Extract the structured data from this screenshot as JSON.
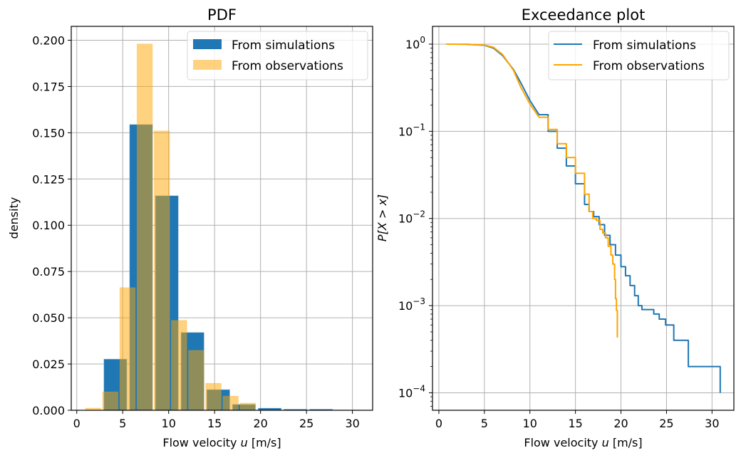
{
  "colors": {
    "simulations": "#1f77b4",
    "observations": "#ffa500",
    "grid": "#b0b0b0"
  },
  "chart_data": [
    {
      "type": "bar",
      "subtype": "histogram",
      "title": "PDF",
      "xlabel_prefix": "Flow velocity ",
      "xlabel_var": "u",
      "xlabel_suffix": " [m/s]",
      "ylabel": "density",
      "xlim": [
        -0.6,
        32.2
      ],
      "ylim": [
        0,
        0.2075
      ],
      "xticks": [
        0,
        5,
        10,
        15,
        20,
        25,
        30
      ],
      "xtick_labels": [
        "0",
        "5",
        "10",
        "15",
        "20",
        "25",
        "30"
      ],
      "yticks": [
        0,
        0.025,
        0.05,
        0.075,
        0.1,
        0.125,
        0.15,
        0.175,
        0.2
      ],
      "ytick_labels": [
        "0.000",
        "0.025",
        "0.050",
        "0.075",
        "0.100",
        "0.125",
        "0.150",
        "0.175",
        "0.200"
      ],
      "grid": true,
      "legend_position": "top-right",
      "series": [
        {
          "name": "From simulations",
          "color": "#1f77b4",
          "alpha": 1.0,
          "bin_edges": [
            2.8,
            5.6,
            8.4,
            11.2,
            14.0,
            16.8,
            19.6,
            22.4,
            25.2,
            28.0,
            30.8
          ],
          "values": [
            0.0277,
            0.1545,
            0.116,
            0.0421,
            0.0112,
            0.0032,
            0.0012,
            0.0006,
            0.0006,
            0.0002
          ]
        },
        {
          "name": "From observations",
          "color": "#ffa500",
          "alpha": 0.5,
          "bin_edges": [
            0.85,
            2.72,
            4.59,
            6.46,
            8.33,
            10.2,
            12.07,
            13.94,
            15.81,
            17.68,
            19.55
          ],
          "values": [
            0.0012,
            0.01,
            0.0663,
            0.198,
            0.151,
            0.0486,
            0.0324,
            0.0146,
            0.0077,
            0.0039
          ]
        }
      ]
    },
    {
      "type": "line",
      "subtype": "exceedance",
      "title": "Exceedance plot",
      "xlabel_prefix": "Flow velocity ",
      "xlabel_var": "u",
      "xlabel_suffix": " [m/s]",
      "ylabel": "P[X > x]",
      "yscale": "log",
      "xlim": [
        -0.7,
        32.4
      ],
      "ylim": [
        6.3e-05,
        1.6
      ],
      "xticks": [
        0,
        5,
        10,
        15,
        20,
        25,
        30
      ],
      "xtick_labels": [
        "0",
        "5",
        "10",
        "15",
        "20",
        "25",
        "30"
      ],
      "yticks": [
        1,
        0.1,
        0.01,
        0.001,
        0.0001
      ],
      "ytick_base": "10",
      "ytick_exponents": [
        "0",
        "−1",
        "−2",
        "−3",
        "−4"
      ],
      "grid": true,
      "legend_position": "top-right",
      "series": [
        {
          "name": "From simulations",
          "color": "#1f77b4",
          "x": [
            0.8,
            3,
            5,
            6,
            7,
            8.2,
            9,
            10,
            11,
            12,
            13,
            14,
            15,
            16,
            16.5,
            17,
            17.6,
            18.2,
            18.8,
            19.4,
            20,
            20.5,
            21,
            21.5,
            21.9,
            22.3,
            23.6,
            24.2,
            24.9,
            25.8,
            27.4,
            30.9
          ],
          "y": [
            1.0,
            0.998,
            0.97,
            0.9,
            0.74,
            0.51,
            0.36,
            0.226,
            0.155,
            0.1,
            0.064,
            0.04,
            0.025,
            0.0145,
            0.012,
            0.0105,
            0.0085,
            0.0064,
            0.005,
            0.0038,
            0.0028,
            0.0022,
            0.0017,
            0.0013,
            0.001,
            0.0009,
            0.0008,
            0.0007,
            0.0006,
            0.0004,
            0.0002,
            0.0001
          ],
          "step": true
        },
        {
          "name": "From observations",
          "color": "#ffa500",
          "x": [
            0.8,
            3,
            5,
            6,
            7,
            8.2,
            9,
            10,
            11,
            12,
            13,
            14,
            15,
            16,
            16.5,
            16.9,
            17.3,
            17.7,
            18.0,
            18.3,
            18.6,
            18.9,
            19.1,
            19.3,
            19.4,
            19.5,
            19.6
          ],
          "y": [
            1.0,
            0.999,
            0.975,
            0.92,
            0.76,
            0.5,
            0.32,
            0.206,
            0.145,
            0.105,
            0.072,
            0.05,
            0.033,
            0.019,
            0.012,
            0.01,
            0.0095,
            0.0075,
            0.0068,
            0.006,
            0.0048,
            0.0038,
            0.003,
            0.002,
            0.0012,
            0.00088,
            0.00043
          ],
          "step": true
        }
      ]
    }
  ]
}
